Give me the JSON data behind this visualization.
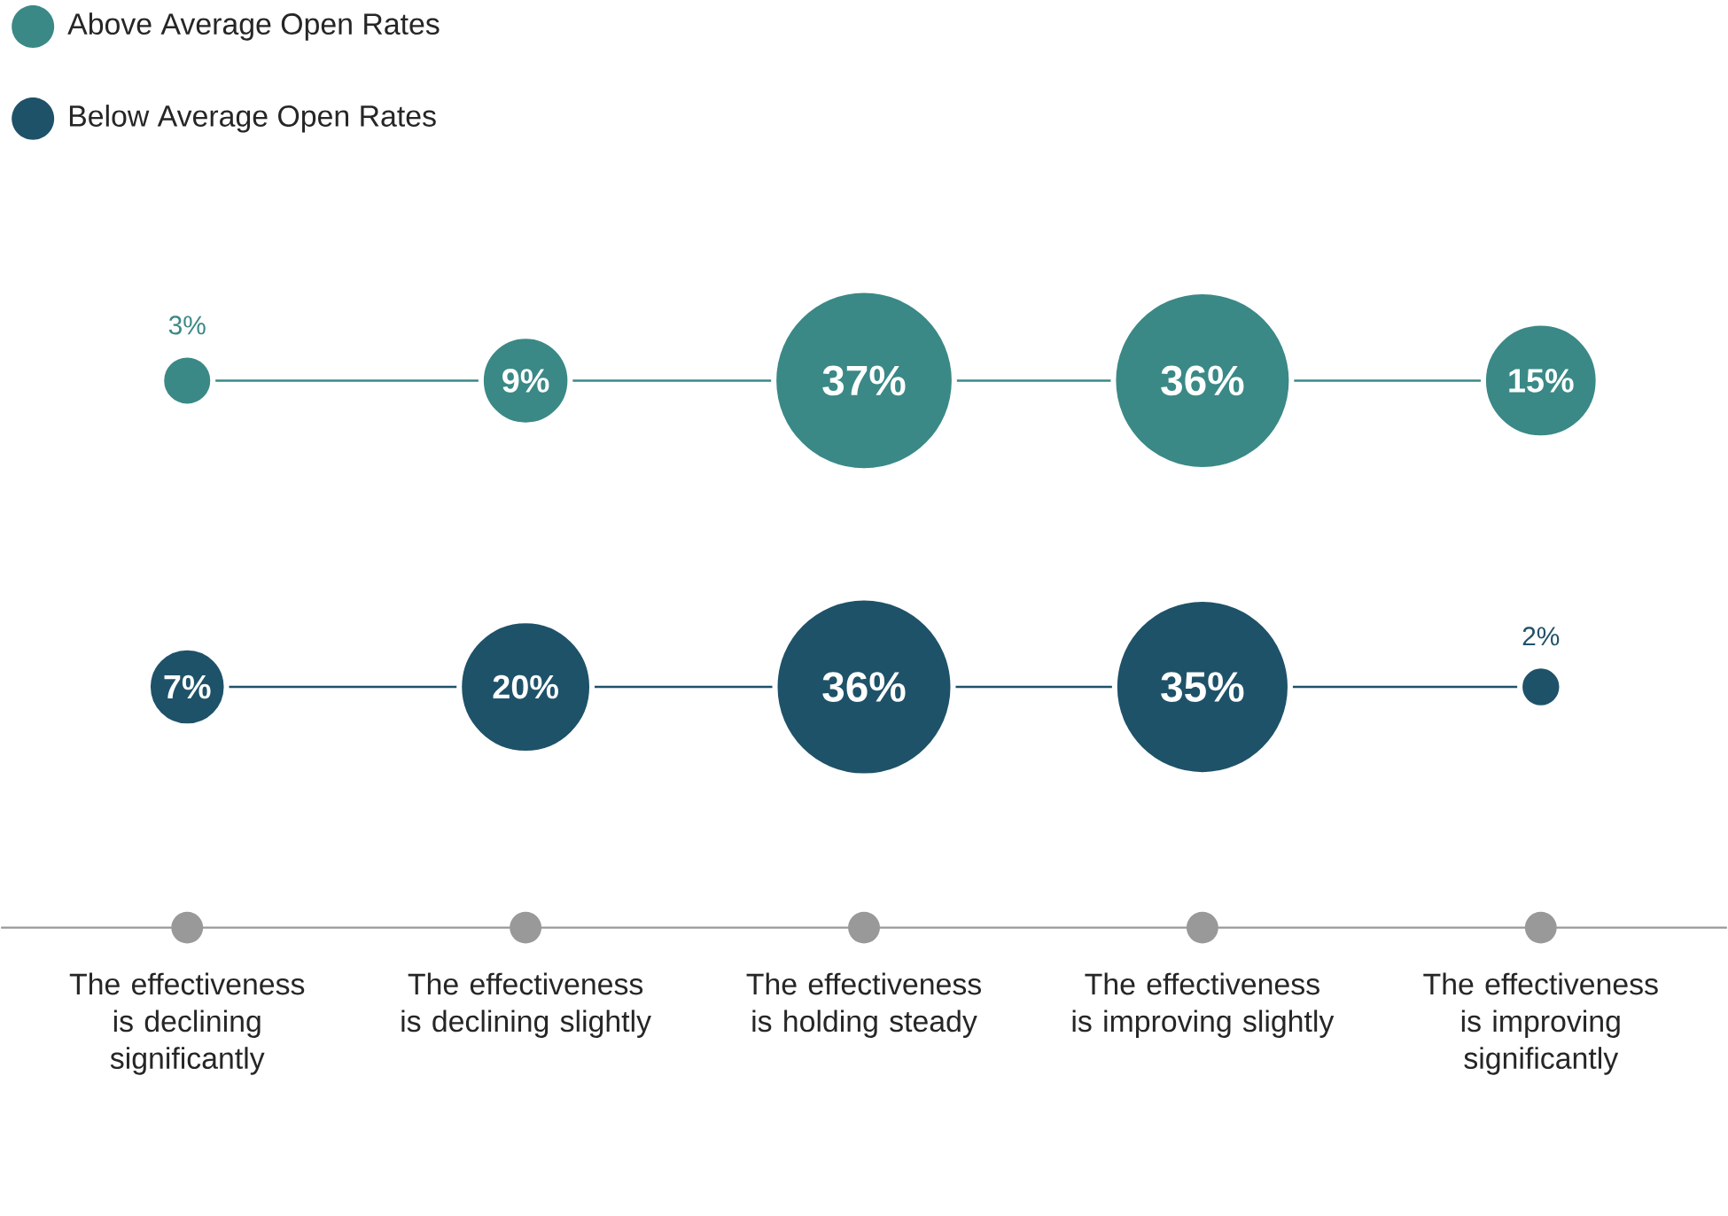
{
  "chart_data": {
    "type": "other",
    "categories": [
      "The effectiveness is declining significantly",
      "The effectiveness is declining slightly",
      "The effectiveness is holding steady",
      "The effectiveness is improving slightly",
      "The effectiveness is improving significantly"
    ],
    "series": [
      {
        "name": "Above Average Open Rates",
        "color": "#3a8986",
        "values": [
          3,
          9,
          37,
          36,
          15
        ],
        "value_labels": [
          "3%",
          "9%",
          "37%",
          "36%",
          "15%"
        ]
      },
      {
        "name": "Below Average Open Rates",
        "color": "#1e5269",
        "values": [
          7,
          20,
          36,
          35,
          2
        ],
        "value_labels": [
          "7%",
          "20%",
          "36%",
          "35%",
          "2%"
        ]
      }
    ],
    "legend": "top left"
  }
}
